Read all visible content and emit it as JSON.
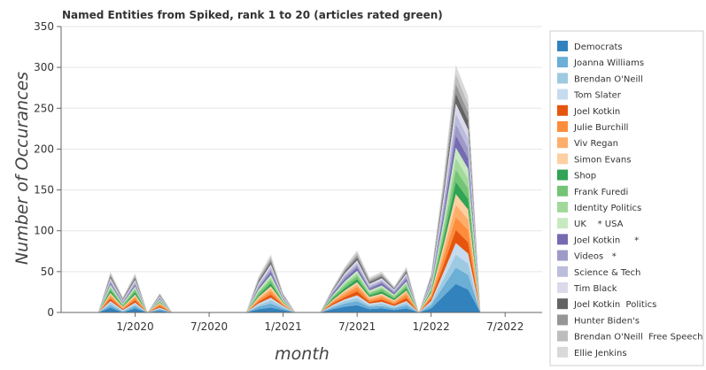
{
  "chart_data": {
    "type": "area",
    "stacked": true,
    "title": "Named Entities from Spiked, rank 1 to 20 (articles rated green)",
    "xlabel": "month",
    "ylabel": "Number of Occurances",
    "ylim": [
      0,
      350
    ],
    "yticks": [
      0,
      50,
      100,
      150,
      200,
      250,
      300,
      350
    ],
    "xlim": [
      "2019-07",
      "2022-10"
    ],
    "xticks": [
      {
        "value": "2020-01",
        "label": "1/2020"
      },
      {
        "value": "2020-07",
        "label": "7/2020"
      },
      {
        "value": "2021-01",
        "label": "1/2021"
      },
      {
        "value": "2021-07",
        "label": "7/2021"
      },
      {
        "value": "2022-01",
        "label": "1/2022"
      },
      {
        "value": "2022-07",
        "label": "7/2022"
      }
    ],
    "grid": "horizontal",
    "legend_position": "right",
    "x": [
      "2019-10",
      "2019-11",
      "2019-12",
      "2020-01",
      "2020-02",
      "2020-03",
      "2020-04",
      "2020-05",
      "2020-06",
      "2020-07",
      "2020-08",
      "2020-09",
      "2020-10",
      "2020-11",
      "2020-12",
      "2021-01",
      "2021-02",
      "2021-03",
      "2021-04",
      "2021-05",
      "2021-06",
      "2021-07",
      "2021-08",
      "2021-09",
      "2021-10",
      "2021-11",
      "2021-12",
      "2022-01",
      "2022-02",
      "2022-03",
      "2022-04",
      "2022-05",
      "2022-06",
      "2022-07",
      "2022-08"
    ],
    "series": [
      {
        "name": "Democrats",
        "color": "#3182bd",
        "values": [
          0,
          6,
          0,
          5,
          0,
          2,
          0,
          0,
          0,
          0,
          0,
          0,
          0,
          4,
          6,
          3,
          0,
          0,
          0,
          4,
          7,
          9,
          4,
          5,
          3,
          5,
          0,
          5,
          20,
          35,
          28,
          0,
          0,
          0,
          0
        ]
      },
      {
        "name": "Joanna Williams",
        "color": "#6baed6",
        "values": [
          0,
          3,
          1,
          3,
          0,
          2,
          0,
          0,
          0,
          0,
          0,
          0,
          0,
          3,
          5,
          2,
          0,
          0,
          0,
          2,
          4,
          5,
          3,
          3,
          2,
          4,
          0,
          4,
          12,
          20,
          18,
          0,
          0,
          0,
          0
        ]
      },
      {
        "name": "Brendan O'Neill",
        "color": "#9ecae1",
        "values": [
          0,
          3,
          1,
          2,
          0,
          1,
          0,
          0,
          0,
          0,
          0,
          0,
          0,
          2,
          4,
          2,
          0,
          0,
          0,
          2,
          3,
          4,
          2,
          3,
          2,
          3,
          0,
          3,
          9,
          16,
          14,
          0,
          0,
          0,
          0
        ]
      },
      {
        "name": "Tom Slater",
        "color": "#c6dbef",
        "values": [
          0,
          2,
          1,
          2,
          0,
          1,
          0,
          0,
          0,
          0,
          0,
          0,
          0,
          2,
          3,
          1,
          0,
          0,
          0,
          1,
          2,
          3,
          2,
          2,
          1,
          2,
          0,
          2,
          8,
          14,
          12,
          0,
          0,
          0,
          0
        ]
      },
      {
        "name": "Joel Kotkin",
        "color": "#e6550d",
        "values": [
          0,
          3,
          1,
          3,
          0,
          2,
          0,
          0,
          0,
          0,
          0,
          0,
          0,
          2,
          4,
          1,
          0,
          0,
          0,
          2,
          3,
          5,
          2,
          3,
          2,
          4,
          0,
          3,
          9,
          16,
          14,
          0,
          0,
          0,
          0
        ]
      },
      {
        "name": "Julie Burchill",
        "color": "#fd8d3c",
        "values": [
          0,
          3,
          1,
          3,
          0,
          2,
          0,
          0,
          0,
          0,
          0,
          0,
          0,
          2,
          4,
          1,
          0,
          0,
          0,
          2,
          3,
          5,
          2,
          3,
          2,
          4,
          0,
          3,
          9,
          16,
          15,
          0,
          0,
          0,
          0
        ]
      },
      {
        "name": "Viv Regan",
        "color": "#fdae6b",
        "values": [
          0,
          2,
          1,
          2,
          0,
          1,
          0,
          0,
          0,
          0,
          0,
          0,
          0,
          2,
          3,
          1,
          0,
          0,
          0,
          1,
          3,
          3,
          2,
          2,
          2,
          3,
          0,
          2,
          8,
          15,
          13,
          0,
          0,
          0,
          0
        ]
      },
      {
        "name": "Simon Evans",
        "color": "#fdd0a2",
        "values": [
          0,
          2,
          1,
          2,
          0,
          1,
          0,
          0,
          0,
          0,
          0,
          0,
          0,
          2,
          3,
          1,
          0,
          0,
          0,
          1,
          2,
          3,
          2,
          2,
          1,
          2,
          0,
          2,
          7,
          13,
          12,
          0,
          0,
          0,
          0
        ]
      },
      {
        "name": "Shop",
        "color": "#31a354",
        "values": [
          0,
          3,
          1,
          3,
          0,
          1,
          0,
          0,
          0,
          0,
          0,
          0,
          0,
          2,
          4,
          1,
          0,
          0,
          0,
          2,
          3,
          4,
          2,
          3,
          2,
          3,
          0,
          2,
          8,
          15,
          13,
          0,
          0,
          0,
          0
        ]
      },
      {
        "name": "Frank Furedi",
        "color": "#74c476",
        "values": [
          0,
          3,
          1,
          3,
          0,
          1,
          0,
          0,
          0,
          0,
          0,
          0,
          0,
          3,
          4,
          1,
          0,
          0,
          0,
          2,
          3,
          4,
          2,
          3,
          2,
          3,
          0,
          2,
          8,
          15,
          13,
          0,
          0,
          0,
          0
        ]
      },
      {
        "name": "Identity Politics",
        "color": "#a1d99b",
        "values": [
          0,
          2,
          1,
          2,
          0,
          1,
          0,
          0,
          0,
          0,
          0,
          0,
          0,
          2,
          3,
          1,
          0,
          0,
          0,
          1,
          3,
          3,
          2,
          2,
          2,
          3,
          0,
          2,
          7,
          14,
          12,
          0,
          0,
          0,
          0
        ]
      },
      {
        "name": "UK    * USA",
        "color": "#c7e9c0",
        "values": [
          0,
          2,
          1,
          2,
          0,
          1,
          0,
          0,
          0,
          0,
          0,
          0,
          0,
          2,
          3,
          1,
          0,
          0,
          0,
          1,
          2,
          3,
          2,
          2,
          1,
          2,
          0,
          2,
          7,
          13,
          12,
          0,
          0,
          0,
          0
        ]
      },
      {
        "name": "Joel Kotkin     *",
        "color": "#756bb1",
        "values": [
          0,
          2,
          1,
          2,
          0,
          1,
          0,
          0,
          0,
          0,
          0,
          0,
          0,
          2,
          4,
          1,
          0,
          0,
          0,
          2,
          3,
          4,
          2,
          3,
          2,
          3,
          0,
          2,
          8,
          15,
          13,
          0,
          0,
          0,
          0
        ]
      },
      {
        "name": "Videos   *",
        "color": "#9e9ac8",
        "values": [
          0,
          2,
          1,
          2,
          0,
          1,
          0,
          0,
          0,
          0,
          0,
          0,
          0,
          2,
          3,
          1,
          0,
          0,
          0,
          1,
          3,
          3,
          2,
          2,
          2,
          3,
          0,
          2,
          7,
          14,
          12,
          0,
          0,
          0,
          0
        ]
      },
      {
        "name": "Science & Tech",
        "color": "#bcbddc",
        "values": [
          0,
          2,
          1,
          2,
          0,
          1,
          0,
          0,
          0,
          0,
          0,
          0,
          0,
          2,
          3,
          1,
          0,
          0,
          0,
          1,
          2,
          3,
          2,
          2,
          1,
          2,
          0,
          2,
          7,
          13,
          12,
          0,
          0,
          0,
          0
        ]
      },
      {
        "name": "Tim Black",
        "color": "#dadaeb",
        "values": [
          0,
          2,
          1,
          2,
          0,
          1,
          0,
          0,
          0,
          0,
          0,
          0,
          0,
          2,
          3,
          1,
          0,
          0,
          0,
          1,
          2,
          3,
          2,
          2,
          1,
          2,
          0,
          2,
          7,
          12,
          11,
          0,
          0,
          0,
          0
        ]
      },
      {
        "name": "Joel Kotkin  Politics",
        "color": "#636363",
        "values": [
          0,
          2,
          1,
          2,
          0,
          1,
          0,
          0,
          0,
          0,
          0,
          0,
          0,
          2,
          3,
          1,
          0,
          0,
          0,
          1,
          2,
          3,
          2,
          2,
          1,
          2,
          0,
          2,
          6,
          12,
          11,
          0,
          0,
          0,
          0
        ]
      },
      {
        "name": "Hunter Biden's",
        "color": "#969696",
        "values": [
          0,
          2,
          1,
          2,
          0,
          1,
          0,
          0,
          0,
          0,
          0,
          0,
          0,
          2,
          3,
          1,
          0,
          0,
          0,
          1,
          2,
          3,
          2,
          2,
          1,
          2,
          0,
          2,
          6,
          12,
          10,
          0,
          0,
          0,
          0
        ]
      },
      {
        "name": "Brendan O'Neill  Free Speech",
        "color": "#bdbdbd",
        "values": [
          0,
          2,
          1,
          2,
          0,
          1,
          0,
          0,
          0,
          0,
          0,
          0,
          0,
          2,
          3,
          1,
          0,
          0,
          0,
          1,
          2,
          3,
          2,
          2,
          1,
          2,
          0,
          2,
          6,
          12,
          10,
          0,
          0,
          0,
          0
        ]
      },
      {
        "name": "Ellie Jenkins",
        "color": "#d9d9d9",
        "values": [
          0,
          2,
          1,
          2,
          0,
          1,
          0,
          0,
          0,
          0,
          0,
          0,
          0,
          2,
          3,
          1,
          0,
          0,
          0,
          1,
          2,
          3,
          2,
          2,
          1,
          2,
          0,
          2,
          6,
          11,
          10,
          0,
          0,
          0,
          0
        ]
      }
    ]
  }
}
